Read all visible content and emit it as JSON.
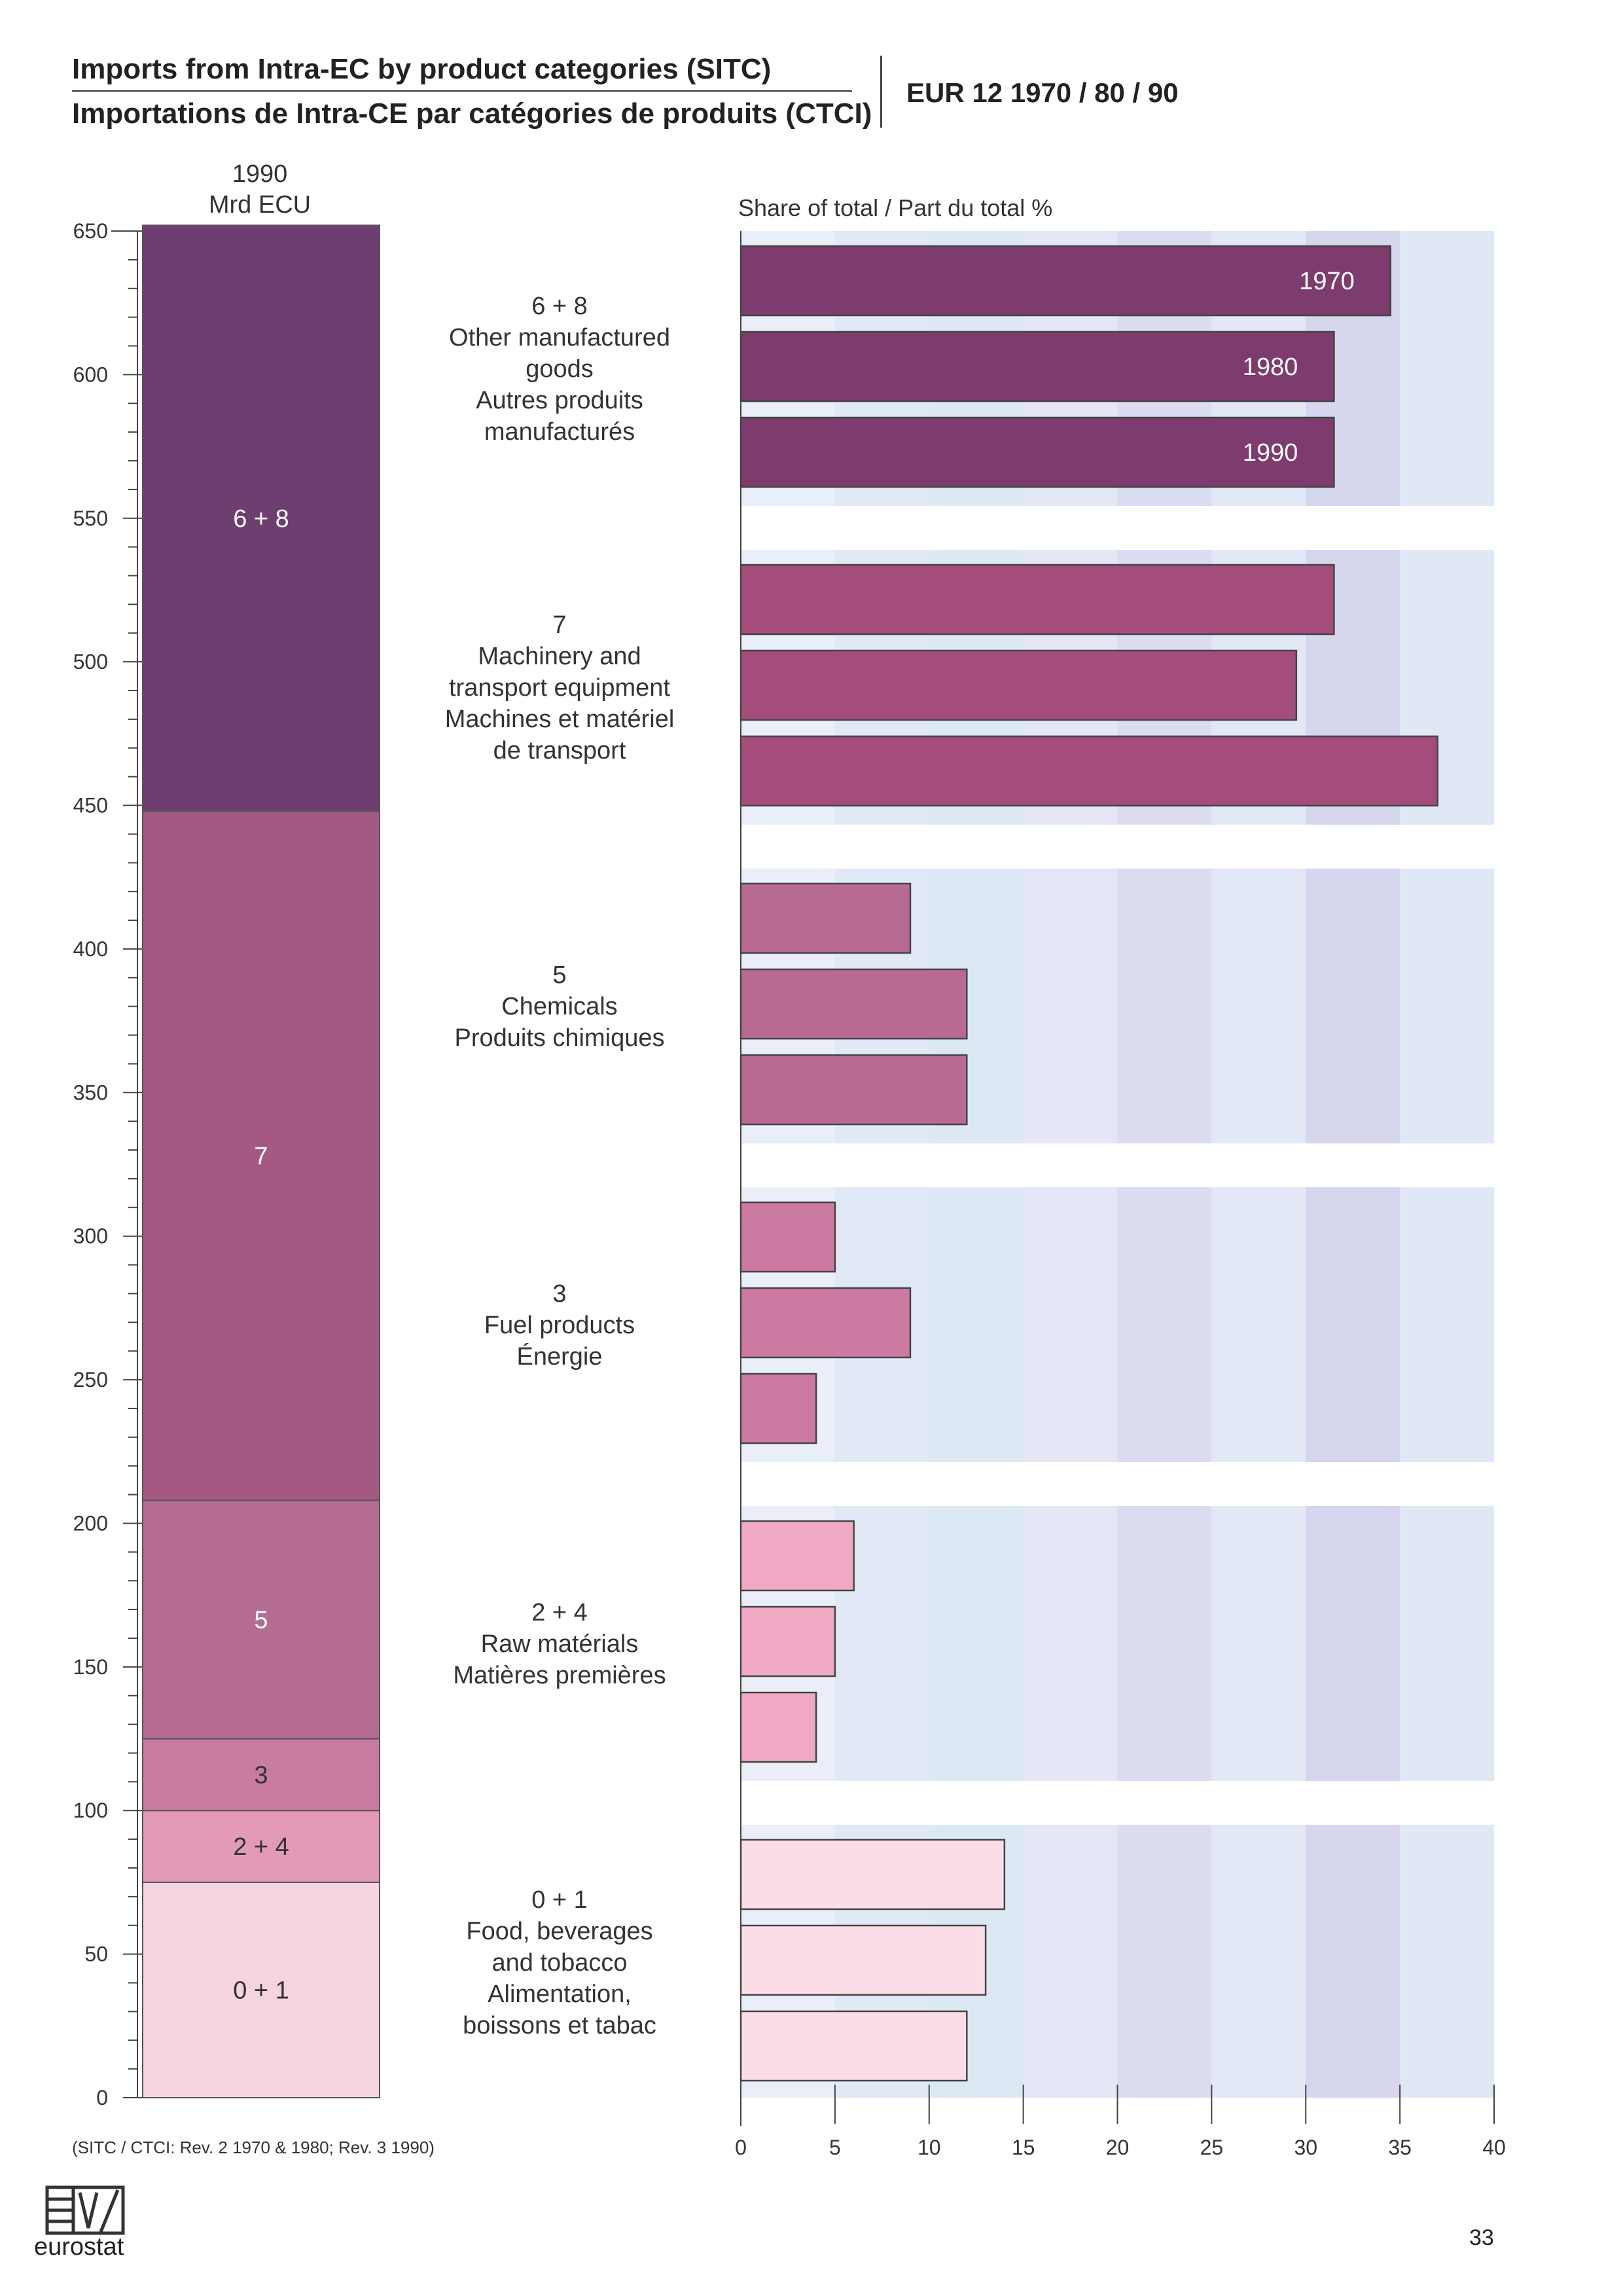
{
  "header": {
    "title_en": "Imports from Intra-EC by product categories (SITC)",
    "title_fr": "Importations de Intra-CE par catégories de produits (CTCI)",
    "edition": "EUR 12  1970 / 80 / 90"
  },
  "footer": {
    "logo_text": "eurostat",
    "page_number": "33"
  },
  "chart_data": [
    {
      "type": "bar",
      "stacked": true,
      "title": "1990",
      "ylabel": "Mrd ECU",
      "ylim": [
        0,
        650
      ],
      "yticks": [
        0,
        50,
        100,
        150,
        200,
        250,
        300,
        350,
        400,
        450,
        500,
        550,
        600,
        650
      ],
      "segments": [
        {
          "label": "0 + 1",
          "value": 75,
          "color": "#f6d3e1"
        },
        {
          "label": "2 + 4",
          "value": 25,
          "color": "#e39ab9"
        },
        {
          "label": "3",
          "value": 25,
          "color": "#c87c9f"
        },
        {
          "label": "5",
          "value": 83,
          "color": "#b56c92"
        },
        {
          "label": "7",
          "value": 240,
          "color": "#a45983"
        },
        {
          "label": "6 + 8",
          "value": 204,
          "color": "#6e3e70"
        }
      ],
      "note": "(SITC / CTCI: Rev. 2 1970 & 1980; Rev. 3 1990)"
    },
    {
      "type": "bar",
      "orientation": "horizontal",
      "title": "Share of total / Part du total  %",
      "xlim": [
        0,
        40
      ],
      "xticks": [
        0,
        5,
        10,
        15,
        20,
        25,
        30,
        35,
        40
      ],
      "series_names": [
        "1970",
        "1980",
        "1990"
      ],
      "groups": [
        {
          "code": "6 + 8",
          "label_lines": [
            "Other manufactured",
            "goods",
            "Autres produits",
            "manufacturés"
          ],
          "values": [
            34.5,
            31.5,
            31.5
          ],
          "color": "#7d3b6e"
        },
        {
          "code": "7",
          "label_lines": [
            "Machinery and",
            "transport equipment",
            "Machines et matériel",
            "de transport"
          ],
          "values": [
            31.5,
            29.5,
            37
          ],
          "color": "#a44d7c"
        },
        {
          "code": "5",
          "label_lines": [
            "Chemicals",
            "Produits chimiques"
          ],
          "values": [
            9,
            12,
            12
          ],
          "color": "#b86a93"
        },
        {
          "code": "3",
          "label_lines": [
            "Fuel products",
            "Énergie"
          ],
          "values": [
            5,
            9,
            4
          ],
          "color": "#cc7aa2"
        },
        {
          "code": "2 + 4",
          "label_lines": [
            "Raw matérials",
            "Matières premières"
          ],
          "values": [
            6,
            5,
            4
          ],
          "color": "#f0a9c4"
        },
        {
          "code": "0 + 1",
          "label_lines": [
            "Food, beverages",
            "and tobacco",
            "Alimentation,",
            "boissons et tabac"
          ],
          "values": [
            14,
            13,
            12
          ],
          "color": "#fbdde8"
        }
      ]
    }
  ]
}
